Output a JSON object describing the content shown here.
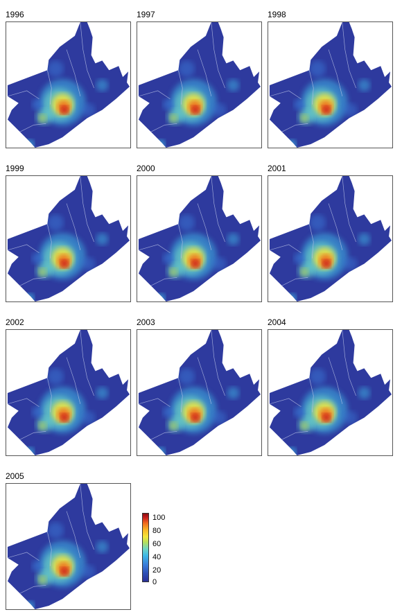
{
  "panels": [
    {
      "year": "1996"
    },
    {
      "year": "1997"
    },
    {
      "year": "1998"
    },
    {
      "year": "1999"
    },
    {
      "year": "2000"
    },
    {
      "year": "2001"
    },
    {
      "year": "2002"
    },
    {
      "year": "2003"
    },
    {
      "year": "2004"
    },
    {
      "year": "2005"
    }
  ],
  "legend": {
    "ticks": [
      "100",
      "80",
      "60",
      "40",
      "20",
      "0"
    ],
    "colors": {
      "low": "#2a2f96",
      "mid_low": "#3fb8e6",
      "mid": "#f4e63a",
      "high": "#c81e1e"
    }
  }
}
